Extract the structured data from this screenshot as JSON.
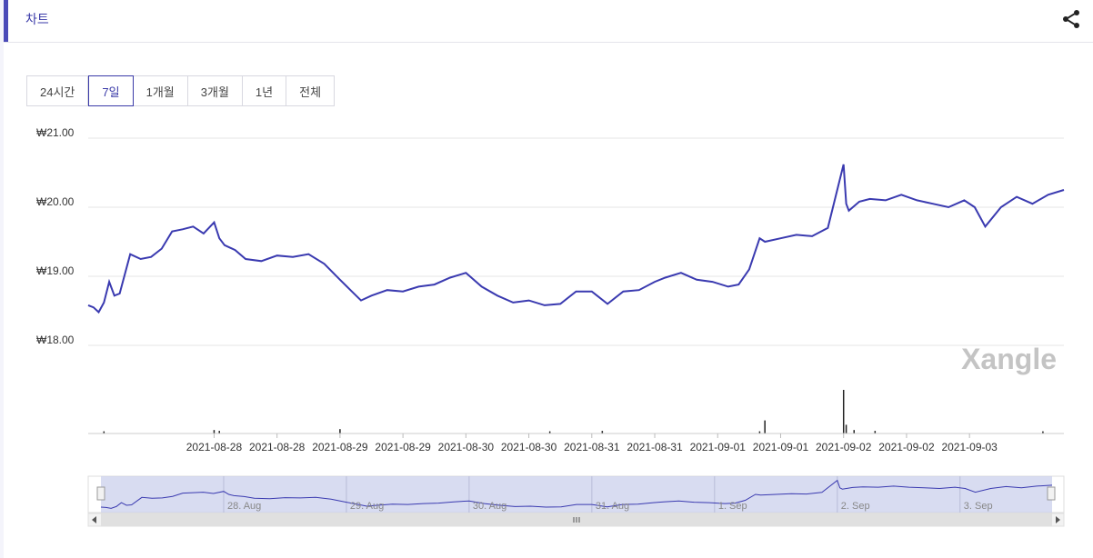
{
  "header": {
    "title": "차트",
    "share_icon": "share-icon"
  },
  "tabs": [
    {
      "label": "24시간",
      "active": false
    },
    {
      "label": "7일",
      "active": true
    },
    {
      "label": "1개월",
      "active": false
    },
    {
      "label": "3개월",
      "active": false
    },
    {
      "label": "1년",
      "active": false
    },
    {
      "label": "전체",
      "active": false
    }
  ],
  "watermark": "Xangle",
  "colors": {
    "line": "#3a3ab0",
    "accent": "#4a4ab8",
    "navigator_fill": "#c8cdeb"
  },
  "chart_data": {
    "type": "line",
    "yticks": [
      "₩21.00",
      "₩20.00",
      "₩19.00",
      "₩18.00"
    ],
    "ylim": [
      18.0,
      21.0
    ],
    "xlim": [
      "2021-08-27 00:00",
      "2021-09-03 18:00"
    ],
    "x_tick_labels": [
      "2021-08-28",
      "2021-08-28",
      "2021-08-29",
      "2021-08-29",
      "2021-08-30",
      "2021-08-30",
      "2021-08-31",
      "2021-08-31",
      "2021-09-01",
      "2021-09-01",
      "2021-09-02",
      "2021-09-02",
      "2021-09-03"
    ],
    "x_ticks": [
      "2021-08-28 00:00",
      "2021-08-28 12:00",
      "2021-08-29 00:00",
      "2021-08-29 12:00",
      "2021-08-30 00:00",
      "2021-08-30 12:00",
      "2021-08-31 00:00",
      "2021-08-31 12:00",
      "2021-09-01 00:00",
      "2021-09-01 12:00",
      "2021-09-02 00:00",
      "2021-09-02 12:00",
      "2021-09-03 00:00"
    ],
    "series": [
      {
        "x": [
          "2021-08-27 00:00",
          "2021-08-27 01:00",
          "2021-08-27 02:00",
          "2021-08-27 03:00",
          "2021-08-27 04:00",
          "2021-08-27 05:00",
          "2021-08-27 06:00",
          "2021-08-27 08:00",
          "2021-08-27 10:00",
          "2021-08-27 12:00",
          "2021-08-27 14:00",
          "2021-08-27 16:00",
          "2021-08-27 18:00",
          "2021-08-27 20:00",
          "2021-08-27 22:00",
          "2021-08-28 00:00",
          "2021-08-28 01:00",
          "2021-08-28 02:00",
          "2021-08-28 04:00",
          "2021-08-28 06:00",
          "2021-08-28 09:00",
          "2021-08-28 12:00",
          "2021-08-28 15:00",
          "2021-08-28 18:00",
          "2021-08-28 21:00",
          "2021-08-29 00:00",
          "2021-08-29 02:00",
          "2021-08-29 04:00",
          "2021-08-29 06:00",
          "2021-08-29 09:00",
          "2021-08-29 12:00",
          "2021-08-29 15:00",
          "2021-08-29 18:00",
          "2021-08-29 21:00",
          "2021-08-30 00:00",
          "2021-08-30 03:00",
          "2021-08-30 06:00",
          "2021-08-30 09:00",
          "2021-08-30 12:00",
          "2021-08-30 15:00",
          "2021-08-30 18:00",
          "2021-08-30 21:00",
          "2021-08-31 00:00",
          "2021-08-31 01:00",
          "2021-08-31 03:00",
          "2021-08-31 06:00",
          "2021-08-31 09:00",
          "2021-08-31 12:00",
          "2021-08-31 14:00",
          "2021-08-31 17:00",
          "2021-08-31 20:00",
          "2021-08-31 23:00",
          "2021-09-01 02:00",
          "2021-09-01 04:00",
          "2021-09-01 06:00",
          "2021-09-01 08:00",
          "2021-09-01 09:00",
          "2021-09-01 12:00",
          "2021-09-01 15:00",
          "2021-09-01 18:00",
          "2021-09-01 21:00",
          "2021-09-02 00:00",
          "2021-09-02 00:30",
          "2021-09-02 01:00",
          "2021-09-02 03:00",
          "2021-09-02 05:00",
          "2021-09-02 08:00",
          "2021-09-02 11:00",
          "2021-09-02 14:00",
          "2021-09-02 17:00",
          "2021-09-02 20:00",
          "2021-09-02 23:00",
          "2021-09-03 01:00",
          "2021-09-03 03:00",
          "2021-09-03 06:00",
          "2021-09-03 09:00",
          "2021-09-03 12:00",
          "2021-09-03 15:00",
          "2021-09-03 18:00"
        ],
        "y": [
          18.58,
          18.55,
          18.48,
          18.62,
          18.92,
          18.72,
          18.75,
          19.32,
          19.25,
          19.28,
          19.4,
          19.65,
          19.68,
          19.72,
          19.62,
          19.78,
          19.55,
          19.45,
          19.38,
          19.25,
          19.22,
          19.3,
          19.28,
          19.32,
          19.18,
          18.95,
          18.8,
          18.65,
          18.72,
          18.8,
          18.78,
          18.85,
          18.88,
          18.98,
          19.05,
          18.85,
          18.72,
          18.62,
          18.65,
          18.58,
          18.6,
          18.78,
          18.78,
          18.72,
          18.6,
          18.78,
          18.8,
          18.92,
          18.98,
          19.05,
          18.95,
          18.92,
          18.85,
          18.88,
          19.1,
          19.55,
          19.5,
          19.55,
          19.6,
          19.58,
          19.7,
          20.62,
          20.05,
          19.95,
          20.08,
          20.12,
          20.1,
          20.18,
          20.1,
          20.05,
          20.0,
          20.1,
          20.0,
          19.72,
          20.0,
          20.15,
          20.05,
          20.18,
          20.25
        ]
      }
    ]
  },
  "volume": {
    "x": [
      "2021-08-27 03:00",
      "2021-08-28 00:00",
      "2021-08-28 01:00",
      "2021-08-29 00:00",
      "2021-08-30 16:00",
      "2021-08-31 02:00",
      "2021-09-01 08:00",
      "2021-09-01 09:00",
      "2021-09-02 00:00",
      "2021-09-02 00:30",
      "2021-09-02 02:00",
      "2021-09-02 06:00",
      "2021-09-03 14:00"
    ],
    "v": [
      0.05,
      0.08,
      0.06,
      0.1,
      0.05,
      0.06,
      0.05,
      0.3,
      1.0,
      0.2,
      0.08,
      0.06,
      0.05
    ]
  },
  "navigator": {
    "labels": [
      "28. Aug",
      "29. Aug",
      "30. Aug",
      "31. Aug",
      "1. Sep",
      "2. Sep",
      "3. Sep"
    ],
    "label_x": [
      "2021-08-28 00:00",
      "2021-08-29 00:00",
      "2021-08-30 00:00",
      "2021-08-31 00:00",
      "2021-09-01 00:00",
      "2021-09-02 00:00",
      "2021-09-03 00:00"
    ]
  }
}
